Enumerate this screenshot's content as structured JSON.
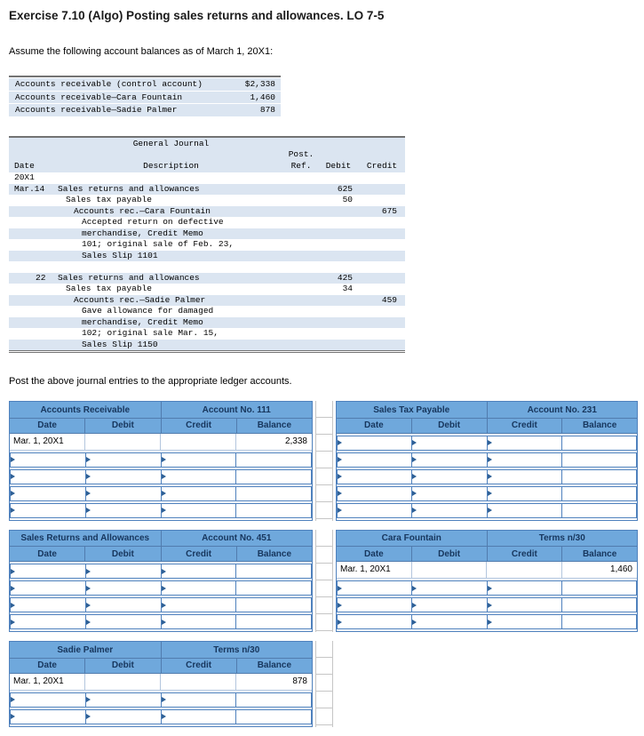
{
  "page": {
    "title": "Exercise 7.10 (Algo) Posting sales returns and allowances. LO 7-5",
    "intro": "Assume the following account balances as of March 1, 20X1:",
    "post_instruction": "Post the above journal entries to the appropriate ledger accounts."
  },
  "balances": [
    {
      "label": "Accounts receivable (control account)",
      "amount": "$2,338"
    },
    {
      "label": "Accounts receivable—Cara Fountain",
      "amount": "1,460"
    },
    {
      "label": "Accounts receivable—Sadie Palmer",
      "amount": "878"
    }
  ],
  "journal": {
    "title": "General Journal",
    "col_date": "Date",
    "col_description": "Description",
    "col_post": "Post.",
    "col_ref": "Ref.",
    "col_debit": "Debit",
    "col_credit": "Credit",
    "year": "20X1",
    "rows": [
      {
        "date": "Mar.14",
        "desc": "Sales returns and allowances",
        "debit": "625",
        "credit": ""
      },
      {
        "date": "",
        "desc": "Sales tax payable",
        "debit": "50",
        "credit": ""
      },
      {
        "date": "",
        "desc": "Accounts rec.—Cara Fountain",
        "debit": "",
        "credit": "675"
      },
      {
        "date": "",
        "desc": "Accepted return on defective",
        "debit": "",
        "credit": ""
      },
      {
        "date": "",
        "desc": "merchandise, Credit Memo",
        "debit": "",
        "credit": ""
      },
      {
        "date": "",
        "desc": "101; original sale of Feb. 23,",
        "debit": "",
        "credit": ""
      },
      {
        "date": "",
        "desc": "Sales Slip 1101",
        "debit": "",
        "credit": ""
      },
      {
        "date": "",
        "desc": "",
        "debit": "",
        "credit": ""
      },
      {
        "date": "22",
        "desc": "Sales returns and allowances",
        "debit": "425",
        "credit": ""
      },
      {
        "date": "",
        "desc": "Sales tax payable",
        "debit": "34",
        "credit": ""
      },
      {
        "date": "",
        "desc": "Accounts rec.—Sadie Palmer",
        "debit": "",
        "credit": "459"
      },
      {
        "date": "",
        "desc": "Gave allowance for damaged",
        "debit": "",
        "credit": ""
      },
      {
        "date": "",
        "desc": "merchandise, Credit Memo",
        "debit": "",
        "credit": ""
      },
      {
        "date": "",
        "desc": "102; original sale Mar. 15,",
        "debit": "",
        "credit": ""
      },
      {
        "date": "",
        "desc": "Sales Slip 1150",
        "debit": "",
        "credit": ""
      }
    ]
  },
  "ledger_headers": [
    "Date",
    "Debit",
    "Credit",
    "Balance"
  ],
  "ledgers": [
    {
      "name": "Accounts Receivable",
      "number": "Account No. 111",
      "opening_date": "Mar. 1, 20X1",
      "opening_balance": "2,338",
      "empty_rows": 4
    },
    {
      "name": "Sales Tax Payable",
      "number": "Account No. 231",
      "empty_rows": 5
    },
    {
      "name": "Sales Returns and Allowances",
      "number": "Account No. 451",
      "empty_rows": 4
    },
    {
      "name": "Cara Fountain",
      "number": "Terms n/30",
      "opening_date": "Mar. 1, 20X1",
      "opening_balance": "1,460",
      "empty_rows": 3
    },
    {
      "name": "Sadie Palmer",
      "number": "Terms n/30",
      "opening_date": "Mar. 1, 20X1",
      "opening_balance": "878",
      "empty_rows": 2
    }
  ],
  "colors": {
    "ledger_header_bg": "#6fa8dc",
    "input_cell_border": "#4f81bd",
    "journal_row_shade": "#dbe5f1"
  }
}
